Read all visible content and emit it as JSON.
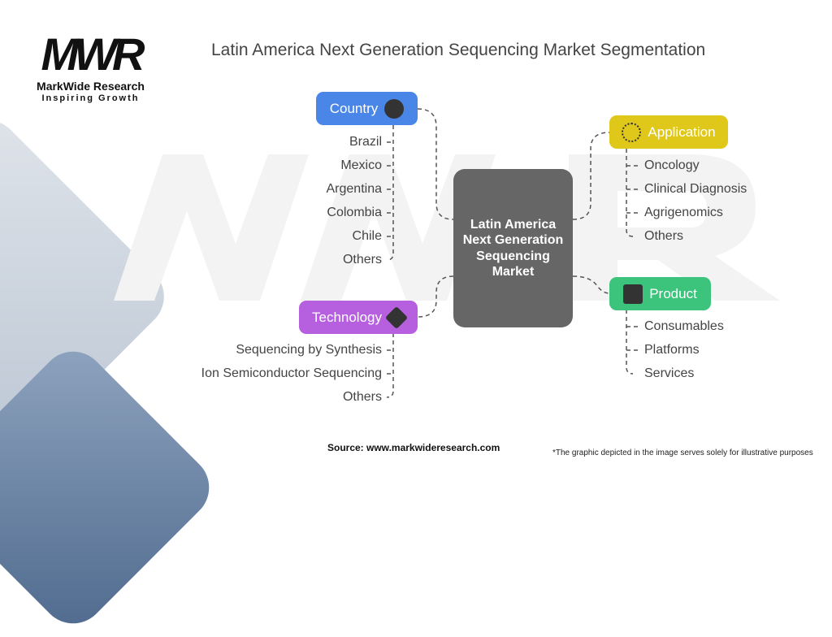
{
  "logo": {
    "mark": "MWR",
    "name": "MarkWide Research",
    "tagline": "Inspiring Growth"
  },
  "title": "Latin America Next Generation Sequencing Market Segmentation",
  "center": "Latin America Next Generation Sequencing Market",
  "segments": {
    "country": {
      "label": "Country",
      "icon": "globe-icon",
      "color": "#4a86e8",
      "items": [
        "Brazil",
        "Mexico",
        "Argentina",
        "Colombia",
        "Chile",
        "Others"
      ]
    },
    "application": {
      "label": "Application",
      "icon": "compass-icon",
      "color": "#e0c81a",
      "items": [
        "Oncology",
        "Clinical Diagnosis",
        "Agrigenomics",
        "Others"
      ]
    },
    "product": {
      "label": "Product",
      "icon": "box-icon",
      "color": "#3cc47c",
      "items": [
        "Consumables",
        "Platforms",
        "Services"
      ]
    },
    "technology": {
      "label": "Technology",
      "icon": "syringe-icon",
      "color": "#b660e0",
      "items": [
        "Sequencing by Synthesis",
        "Ion Semiconductor Sequencing",
        "Others"
      ]
    }
  },
  "source": "Source: www.markwideresearch.com",
  "disclaimer": "*The graphic depicted in the image serves solely for illustrative purposes"
}
